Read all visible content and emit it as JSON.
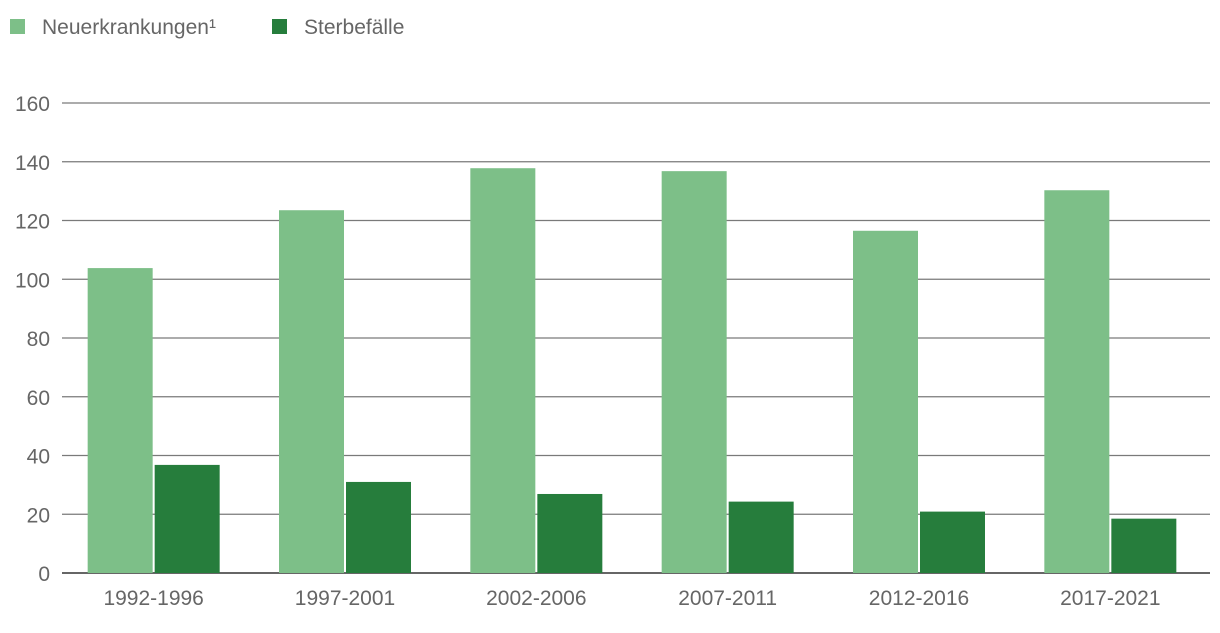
{
  "chart_data": {
    "type": "bar",
    "title": "",
    "xlabel": "",
    "ylabel": "",
    "categories": [
      "1992-1996",
      "1997-2001",
      "2002-2006",
      "2007-2011",
      "2012-2016",
      "2017-2021"
    ],
    "series": [
      {
        "name": "Neuerkrankungen¹",
        "color": "#7dbf88",
        "values": [
          103.8,
          123.5,
          137.8,
          136.8,
          116.5,
          130.3
        ]
      },
      {
        "name": "Sterbefälle",
        "color": "#267d3c",
        "values": [
          36.8,
          31.0,
          26.9,
          24.3,
          20.9,
          18.5
        ]
      }
    ],
    "ylim": [
      0,
      160
    ],
    "yticks": [
      0,
      20,
      40,
      60,
      80,
      100,
      120,
      140,
      160
    ],
    "grid": true,
    "legend_position": "top-left"
  }
}
